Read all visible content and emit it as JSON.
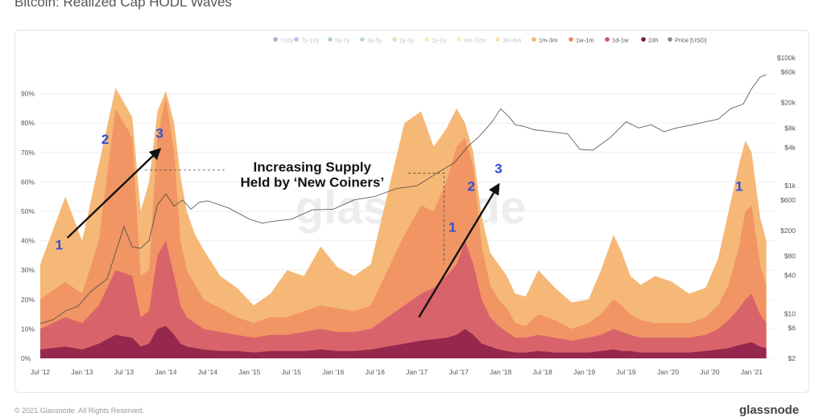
{
  "page": {
    "title": "Bitcoin: Realized Cap HODL Waves",
    "footer_left": "© 2021 Glassnode. All Rights Reserved.",
    "footer_right": "glassnode"
  },
  "chart_data": {
    "type": "area",
    "watermark": "glassnode",
    "x_ticks": [
      "Jul '12",
      "Jan '13",
      "Jul '13",
      "Jan '14",
      "Jul '14",
      "Jan '15",
      "Jul '15",
      "Jan '16",
      "Jul '16",
      "Jan '17",
      "Jul '17",
      "Jan '18",
      "Jul '18",
      "Jan '19",
      "Jul '19",
      "Jan '20",
      "Jul '20",
      "Jan '21"
    ],
    "y_left_ticks": [
      "0%",
      "10%",
      "20%",
      "30%",
      "40%",
      "50%",
      "60%",
      "70%",
      "80%",
      "90%"
    ],
    "y_left_range": [
      0,
      100
    ],
    "y_right_ticks": [
      "$2",
      "$6",
      "$10",
      "$40",
      "$80",
      "$200",
      "$600",
      "$1k",
      "$4k",
      "$8k",
      "$20k",
      "$60k",
      "$100k"
    ],
    "y_right_scale": "log",
    "y_right_range": [
      2,
      100000
    ],
    "legend_position": "top",
    "legend": [
      {
        "name": ">10y",
        "color": "#4b3f8f",
        "faded": true
      },
      {
        "name": "7y-10y",
        "color": "#5470c6",
        "faded": true
      },
      {
        "name": "5y-7y",
        "color": "#3aa0a8",
        "faded": true
      },
      {
        "name": "3y-5y",
        "color": "#50b878",
        "faded": true
      },
      {
        "name": "2y-3y",
        "color": "#8cc95a",
        "faded": true
      },
      {
        "name": "1y-2y",
        "color": "#d8dd4a",
        "faded": true
      },
      {
        "name": "6m-12m",
        "color": "#f2d455",
        "faded": true
      },
      {
        "name": "3m-6m",
        "color": "#f3c060",
        "faded": true
      },
      {
        "name": "1m-3m",
        "color": "#f6b470",
        "faded": false
      },
      {
        "name": "1w-1m",
        "color": "#ee8a5c",
        "faded": false
      },
      {
        "name": "1d-1w",
        "color": "#cf4f6f",
        "faded": false
      },
      {
        "name": "24h",
        "color": "#7e1441",
        "faded": false
      },
      {
        "name": "Price [USD]",
        "color": "#888888",
        "faded": false
      }
    ],
    "x_positions": [
      0,
      0.6,
      1.0,
      1.4,
      1.8,
      2.2,
      2.4,
      2.6,
      2.8,
      3.0,
      3.2,
      3.35,
      3.5,
      3.7,
      3.9,
      4.3,
      4.7,
      5.1,
      5.5,
      5.9,
      6.3,
      6.7,
      7.1,
      7.5,
      7.9,
      8.3,
      8.7,
      9.1,
      9.4,
      9.7,
      9.95,
      10.15,
      10.35,
      10.55,
      10.75,
      10.95,
      11.15,
      11.35,
      11.6,
      11.9,
      12.3,
      12.7,
      13.1,
      13.4,
      13.7,
      13.9,
      14.1,
      14.35,
      14.7,
      15.1,
      15.5,
      15.9,
      16.2,
      16.45,
      16.7,
      16.85,
      17.0,
      17.2,
      17.35
    ],
    "series": [
      {
        "name": "1m-3m",
        "values": [
          32,
          55,
          40,
          66,
          92,
          82,
          50,
          60,
          84,
          91,
          80,
          62,
          50,
          42,
          37,
          28,
          24,
          18,
          22,
          30,
          28,
          38,
          31,
          28,
          32,
          56,
          80,
          84,
          72,
          78,
          85,
          80,
          70,
          48,
          36,
          32,
          28,
          22,
          21,
          30,
          24,
          19,
          20,
          30,
          42,
          36,
          28,
          25,
          28,
          26,
          22,
          24,
          34,
          50,
          66,
          74,
          70,
          48,
          40
        ]
      },
      {
        "name": "1w-1m",
        "values": [
          20,
          26,
          22,
          40,
          85,
          75,
          28,
          30,
          75,
          89,
          70,
          40,
          30,
          25,
          20,
          17,
          14,
          12,
          14,
          14,
          16,
          18,
          17,
          16,
          18,
          30,
          42,
          52,
          50,
          60,
          72,
          75,
          65,
          38,
          25,
          20,
          17,
          12,
          11,
          15,
          13,
          10,
          12,
          15,
          20,
          18,
          15,
          13,
          12,
          12,
          12,
          14,
          18,
          25,
          38,
          50,
          52,
          32,
          25
        ]
      },
      {
        "name": "1d-1w",
        "values": [
          10,
          14,
          12,
          18,
          30,
          28,
          14,
          16,
          35,
          40,
          28,
          18,
          14,
          12,
          10,
          9,
          8,
          7,
          8,
          8,
          9,
          10,
          9,
          9,
          10,
          14,
          18,
          22,
          24,
          28,
          32,
          40,
          32,
          20,
          14,
          11,
          9,
          7,
          7,
          8,
          7,
          6,
          7,
          8,
          10,
          9,
          8,
          7,
          7,
          7,
          7,
          8,
          10,
          13,
          17,
          20,
          22,
          15,
          12
        ]
      },
      {
        "name": "24h",
        "values": [
          3,
          4,
          3,
          5,
          8,
          7,
          4,
          5,
          10,
          11,
          8,
          5,
          4,
          3.5,
          3,
          2.5,
          2.5,
          2,
          2.5,
          2.5,
          2.5,
          3,
          2.5,
          2.5,
          3,
          4,
          5,
          6,
          6.5,
          7,
          8,
          10,
          8,
          5,
          4,
          3,
          2.5,
          2,
          2,
          2.5,
          2,
          2,
          2,
          2.5,
          3,
          2.5,
          2.5,
          2,
          2,
          2,
          2,
          2.5,
          3,
          3.5,
          4.5,
          5,
          5.5,
          4,
          3.5
        ]
      }
    ],
    "price": {
      "x": [
        0,
        0.3,
        0.6,
        0.9,
        1.2,
        1.6,
        1.8,
        2.0,
        2.2,
        2.4,
        2.6,
        2.8,
        3.0,
        3.2,
        3.4,
        3.6,
        3.8,
        4.0,
        4.5,
        5.0,
        5.3,
        5.6,
        6.0,
        6.5,
        7.0,
        7.5,
        8.0,
        8.5,
        9.0,
        9.5,
        9.9,
        10.2,
        10.5,
        10.8,
        11.0,
        11.2,
        11.35,
        11.55,
        11.8,
        12.2,
        12.6,
        12.9,
        13.2,
        13.6,
        14.0,
        14.3,
        14.6,
        14.9,
        15.2,
        15.6,
        15.9,
        16.2,
        16.5,
        16.8,
        17.0,
        17.2,
        17.35
      ],
      "values": [
        7,
        8,
        11,
        13,
        22,
        35,
        90,
        230,
        110,
        105,
        140,
        500,
        750,
        480,
        600,
        430,
        550,
        580,
        450,
        300,
        260,
        280,
        300,
        420,
        430,
        600,
        680,
        900,
        1000,
        1600,
        2300,
        4000,
        6000,
        10000,
        16000,
        12000,
        9000,
        8500,
        7500,
        7000,
        6500,
        3700,
        3600,
        5500,
        10000,
        8000,
        9000,
        7000,
        8000,
        9000,
        10000,
        11000,
        16000,
        19000,
        33000,
        50000,
        55000
      ]
    },
    "annotations": [
      {
        "text": "1",
        "x": 0.45,
        "y": 37
      },
      {
        "text": "2",
        "x": 1.55,
        "y": 73
      },
      {
        "text": "3",
        "x": 2.85,
        "y": 75
      },
      {
        "text": "1",
        "x": 9.85,
        "y": 43
      },
      {
        "text": "2",
        "x": 10.3,
        "y": 57
      },
      {
        "text": "3",
        "x": 10.95,
        "y": 63
      },
      {
        "text": "1",
        "x": 16.7,
        "y": 57
      }
    ],
    "callout": "Increasing Supply\nHeld by ‘New Coiners’"
  }
}
